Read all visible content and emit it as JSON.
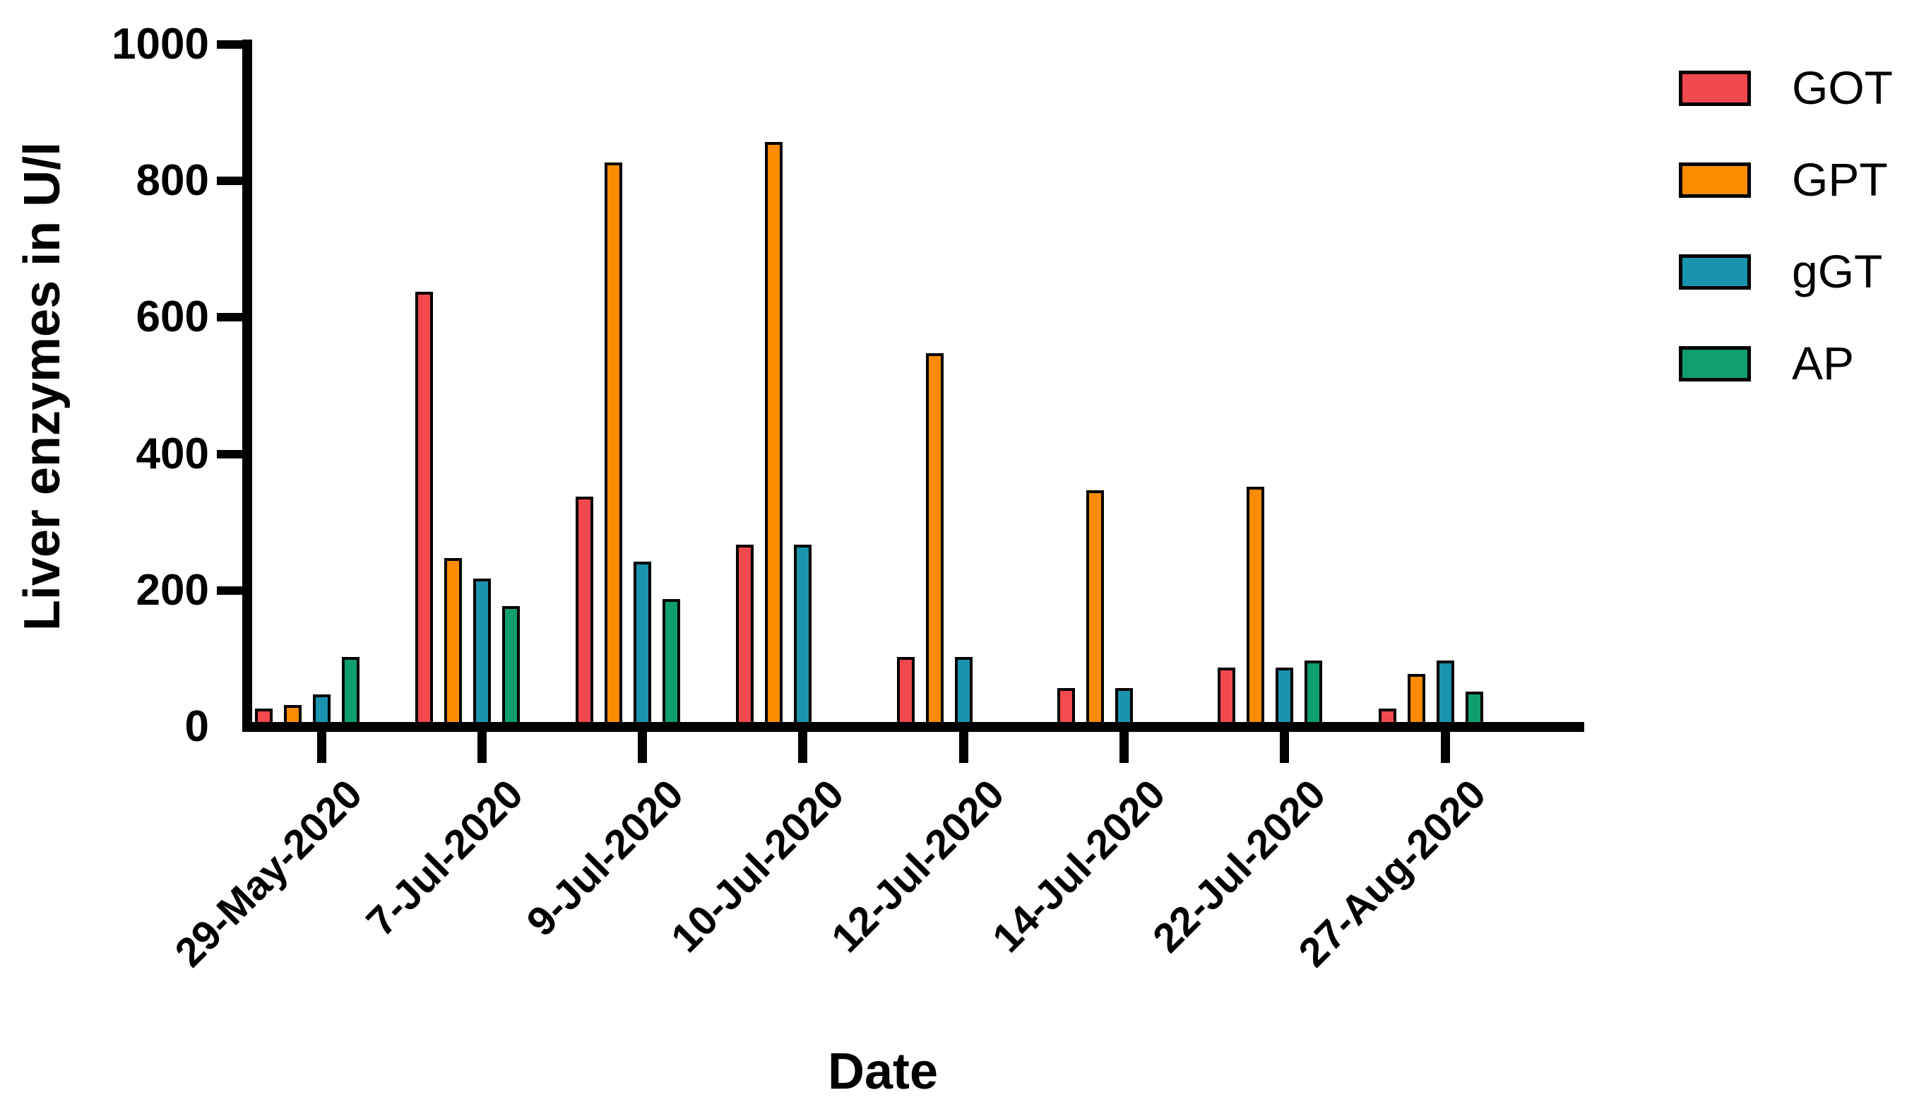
{
  "chart_data": {
    "type": "bar",
    "title": "",
    "xlabel": "Date",
    "ylabel": "Liver enzymes in U/l",
    "ylim": [
      0,
      1000
    ],
    "yticks": [
      0,
      200,
      400,
      600,
      800,
      1000
    ],
    "grid": false,
    "legend_position": "top-right",
    "bar_outline_color": "#000000",
    "axis_color": "#000000",
    "categories": [
      "29-May-2020",
      "7-Jul-2020",
      "9-Jul-2020",
      "10-Jul-2020",
      "12-Jul-2020",
      "14-Jul-2020",
      "22-Jul-2020",
      "27-Aug-2020"
    ],
    "series": [
      {
        "name": "GOT",
        "color": "#F2494E",
        "values": [
          20,
          630,
          330,
          260,
          95,
          50,
          80,
          20
        ]
      },
      {
        "name": "GPT",
        "color": "#FB8B00",
        "values": [
          25,
          240,
          820,
          850,
          540,
          340,
          345,
          70
        ]
      },
      {
        "name": "gGT",
        "color": "#1A93AE",
        "values": [
          40,
          210,
          235,
          260,
          95,
          50,
          80,
          90
        ]
      },
      {
        "name": "AP",
        "color": "#0F9F6C",
        "values": [
          95,
          170,
          180,
          null,
          null,
          null,
          90,
          45
        ]
      }
    ]
  }
}
